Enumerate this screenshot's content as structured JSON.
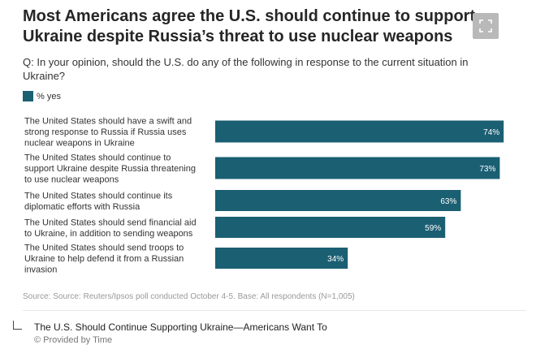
{
  "header": {
    "title": "Most Americans agree the U.S. should continue to support Ukraine despite Russia’s threat to use nuclear weapons",
    "question": "Q: In your opinion, should the U.S. do any of the following in response to the current situation in Ukraine?"
  },
  "legend": {
    "label": "% yes",
    "color": "#1b5f73"
  },
  "chart_data": {
    "type": "bar",
    "orientation": "horizontal",
    "categories": [
      [
        "The United States should have a swift and",
        "strong response to Russia if Russia uses",
        "nuclear weapons in Ukraine"
      ],
      [
        "The United States should continue to",
        "support Ukraine despite Russia threatening",
        "to use nuclear weapons"
      ],
      [
        "The United States should continue its",
        "diplomatic efforts with Russia"
      ],
      [
        "The United States should send financial aid",
        "to Ukraine, in addition to sending weapons"
      ],
      [
        "The United States should send troops to",
        "Ukraine to help defend it from a Russian",
        "invasion"
      ]
    ],
    "series": [
      {
        "name": "% yes",
        "values": [
          74,
          73,
          63,
          59,
          34
        ],
        "labels": [
          "74%",
          "73%",
          "63%",
          "59%",
          "34%"
        ]
      }
    ],
    "xlim": [
      0,
      100
    ],
    "grid": false,
    "legend_position": "top-left",
    "bar_color": "#1b5f73"
  },
  "source": "Source: Source: Reuters/Ipsos poll conducted October 4-5. Base: All respondents (N=1,005)",
  "caption": {
    "text": "The U.S. Should Continue Supporting Ukraine—Americans Want To",
    "credit": "© Provided by Time"
  },
  "icons": {
    "expand": "expand-icon",
    "caption": "caption-corner-icon"
  }
}
